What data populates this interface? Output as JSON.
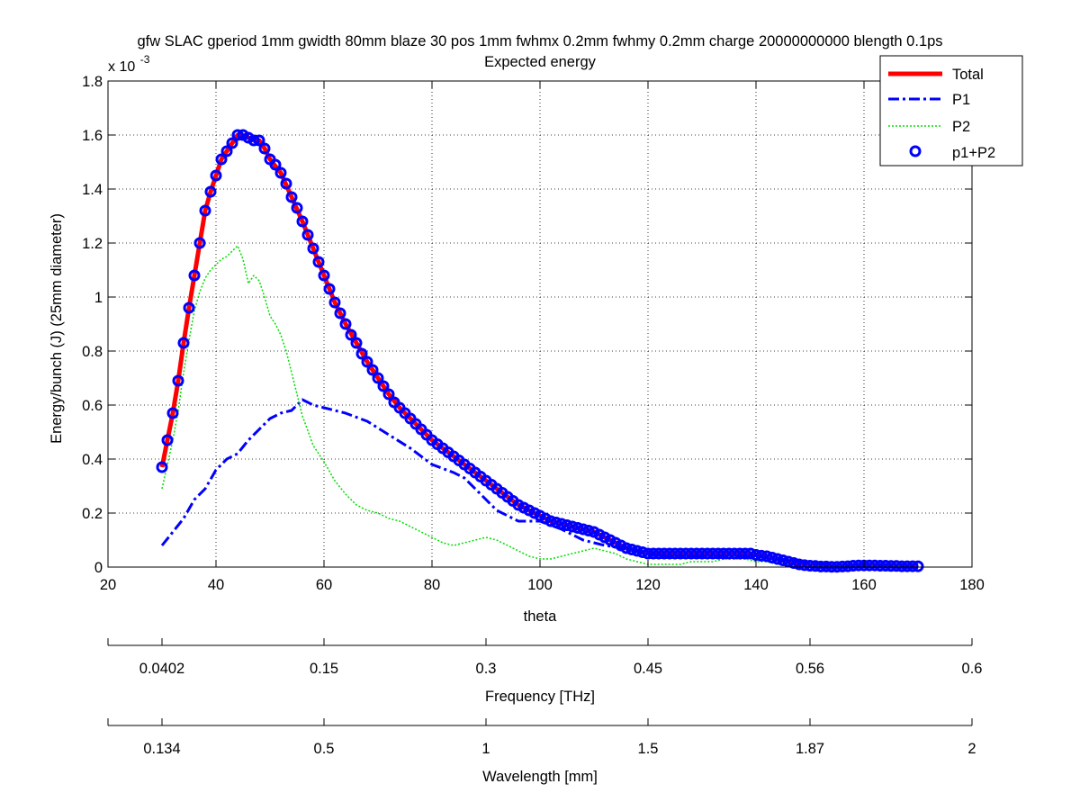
{
  "chart_data": {
    "type": "line",
    "title": "gfw SLAC gperiod 1mm gwidth 80mm blaze 30 pos 1mm fwhmx 0.2mm fwhmy 0.2mm charge 20000000000 blength 0.1ps",
    "subtitle": "Expected energy",
    "xlabel": "theta",
    "ylabel": "Energy/bunch (J)  (25mm diameter)",
    "y_exponent_label": "x 10",
    "y_exponent": "-3",
    "xlim": [
      20,
      180
    ],
    "ylim": [
      0,
      1.8
    ],
    "y_scale_factor": 0.001,
    "grid": true,
    "legend_position": "top-right",
    "xticks": [
      "20",
      "40",
      "60",
      "80",
      "100",
      "120",
      "140",
      "160",
      "180"
    ],
    "yticks": [
      "0",
      "0.2",
      "0.4",
      "0.6",
      "0.8",
      "1",
      "1.2",
      "1.4",
      "1.6",
      "1.8"
    ],
    "secondary_axes": [
      {
        "label": "Frequency [THz]",
        "ticks": [
          {
            "theta": 20,
            "label": ""
          },
          {
            "theta": 30,
            "label": "0.0402"
          },
          {
            "theta": 60,
            "label": "0.15"
          },
          {
            "theta": 90,
            "label": "0.3"
          },
          {
            "theta": 120,
            "label": "0.45"
          },
          {
            "theta": 150,
            "label": "0.56"
          },
          {
            "theta": 180,
            "label": "0.6"
          }
        ]
      },
      {
        "label": "Wavelength [mm]",
        "ticks": [
          {
            "theta": 20,
            "label": ""
          },
          {
            "theta": 30,
            "label": "0.134"
          },
          {
            "theta": 60,
            "label": "0.5"
          },
          {
            "theta": 90,
            "label": "1"
          },
          {
            "theta": 120,
            "label": "1.5"
          },
          {
            "theta": 150,
            "label": "1.87"
          },
          {
            "theta": 180,
            "label": "2"
          }
        ]
      }
    ],
    "series": [
      {
        "name": "Total",
        "color": "#ff0000",
        "style": "solid",
        "x": [
          30,
          31,
          32,
          33,
          34,
          35,
          36,
          37,
          38,
          39,
          40,
          41,
          42,
          43,
          44,
          45,
          46,
          47,
          48,
          49,
          50,
          52,
          54,
          56,
          58,
          60,
          62,
          64,
          66,
          68,
          70,
          72,
          74,
          76,
          78,
          80,
          82,
          84,
          86,
          88,
          90,
          92,
          94,
          96,
          98,
          100,
          102,
          104,
          106,
          108,
          110,
          112,
          114,
          116,
          118,
          120,
          122,
          124,
          126,
          128,
          130,
          132,
          134,
          136,
          138,
          140,
          142,
          144,
          146,
          148,
          150,
          152,
          154,
          156,
          158,
          160,
          162,
          164,
          166,
          168,
          170
        ],
        "y": [
          0.37,
          0.47,
          0.57,
          0.69,
          0.83,
          0.96,
          1.08,
          1.2,
          1.32,
          1.39,
          1.45,
          1.51,
          1.54,
          1.57,
          1.6,
          1.6,
          1.59,
          1.58,
          1.58,
          1.55,
          1.51,
          1.46,
          1.37,
          1.28,
          1.18,
          1.08,
          0.98,
          0.9,
          0.83,
          0.76,
          0.7,
          0.64,
          0.59,
          0.55,
          0.51,
          0.47,
          0.44,
          0.41,
          0.38,
          0.35,
          0.32,
          0.29,
          0.26,
          0.23,
          0.21,
          0.19,
          0.17,
          0.16,
          0.15,
          0.14,
          0.13,
          0.11,
          0.09,
          0.07,
          0.06,
          0.05,
          0.05,
          0.05,
          0.05,
          0.05,
          0.05,
          0.05,
          0.05,
          0.05,
          0.05,
          0.045,
          0.04,
          0.03,
          0.02,
          0.01,
          0.005,
          0.002,
          0.001,
          0.002,
          0.005,
          0.006,
          0.006,
          0.005,
          0.004,
          0.003,
          0.003
        ]
      },
      {
        "name": "P1",
        "color": "#0000ff",
        "style": "dashdot",
        "x": [
          30,
          32,
          34,
          36,
          38,
          40,
          42,
          44,
          46,
          48,
          50,
          52,
          54,
          56,
          58,
          60,
          64,
          68,
          72,
          76,
          80,
          84,
          86,
          88,
          90,
          92,
          94,
          96,
          98,
          100,
          104,
          108,
          112,
          116,
          120,
          124,
          128,
          132,
          136,
          140,
          144,
          148,
          152,
          156,
          160,
          164,
          168,
          170
        ],
        "y": [
          0.08,
          0.13,
          0.18,
          0.25,
          0.29,
          0.36,
          0.4,
          0.42,
          0.47,
          0.51,
          0.55,
          0.57,
          0.58,
          0.62,
          0.6,
          0.59,
          0.57,
          0.54,
          0.49,
          0.44,
          0.38,
          0.35,
          0.33,
          0.29,
          0.25,
          0.21,
          0.19,
          0.17,
          0.17,
          0.17,
          0.14,
          0.1,
          0.08,
          0.07,
          0.05,
          0.04,
          0.04,
          0.04,
          0.04,
          0.04,
          0.03,
          0.02,
          0.01,
          0.005,
          0.005,
          0.004,
          0.003,
          0.003
        ]
      },
      {
        "name": "P2",
        "color": "#00dd00",
        "style": "dotted",
        "x": [
          30,
          31,
          32,
          33,
          34,
          35,
          36,
          37,
          38,
          39,
          40,
          41,
          42,
          43,
          44,
          45,
          46,
          47,
          48,
          49,
          50,
          51,
          52,
          53,
          54,
          55,
          56,
          58,
          60,
          62,
          64,
          66,
          68,
          70,
          72,
          74,
          76,
          78,
          80,
          82,
          84,
          86,
          88,
          90,
          92,
          94,
          96,
          98,
          100,
          102,
          104,
          106,
          108,
          110,
          112,
          114,
          116,
          118,
          120,
          122,
          124,
          126,
          128,
          130,
          132,
          134,
          136,
          138,
          140,
          142,
          144,
          146,
          148,
          150,
          155,
          160,
          165,
          170
        ],
        "y": [
          0.29,
          0.38,
          0.47,
          0.58,
          0.72,
          0.84,
          0.95,
          1.02,
          1.07,
          1.1,
          1.12,
          1.14,
          1.15,
          1.17,
          1.19,
          1.14,
          1.05,
          1.08,
          1.06,
          1.0,
          0.93,
          0.9,
          0.86,
          0.8,
          0.72,
          0.64,
          0.56,
          0.45,
          0.39,
          0.32,
          0.27,
          0.23,
          0.21,
          0.2,
          0.18,
          0.17,
          0.15,
          0.13,
          0.11,
          0.09,
          0.08,
          0.09,
          0.1,
          0.11,
          0.1,
          0.08,
          0.06,
          0.04,
          0.03,
          0.03,
          0.04,
          0.05,
          0.06,
          0.07,
          0.06,
          0.05,
          0.03,
          0.02,
          0.01,
          0.01,
          0.01,
          0.01,
          0.02,
          0.02,
          0.02,
          0.03,
          0.03,
          0.03,
          0.02,
          0.02,
          0.01,
          0.01,
          0.005,
          0.003,
          0.002,
          0.002,
          0.002,
          0.002
        ]
      },
      {
        "name": "p1+P2",
        "color": "#0000ff",
        "style": "circle-markers",
        "x": [
          30,
          31,
          32,
          33,
          34,
          35,
          36,
          37,
          38,
          39,
          40,
          41,
          42,
          43,
          44,
          45,
          46,
          47,
          48,
          49,
          50,
          51,
          52,
          53,
          54,
          55,
          56,
          57,
          58,
          59,
          60,
          61,
          62,
          63,
          64,
          65,
          66,
          67,
          68,
          69,
          70,
          71,
          72,
          73,
          74,
          75,
          76,
          77,
          78,
          79,
          80,
          81,
          82,
          83,
          84,
          85,
          86,
          87,
          88,
          89,
          90,
          91,
          92,
          93,
          94,
          95,
          96,
          97,
          98,
          99,
          100,
          101,
          102,
          103,
          104,
          105,
          106,
          107,
          108,
          109,
          110,
          111,
          112,
          113,
          114,
          115,
          116,
          117,
          118,
          119,
          120,
          121,
          122,
          123,
          124,
          125,
          126,
          127,
          128,
          129,
          130,
          131,
          132,
          133,
          134,
          135,
          136,
          137,
          138,
          139,
          140,
          141,
          142,
          143,
          144,
          145,
          146,
          147,
          148,
          149,
          150,
          151,
          152,
          153,
          154,
          155,
          156,
          157,
          158,
          159,
          160,
          161,
          162,
          163,
          164,
          165,
          166,
          167,
          168,
          169,
          170
        ],
        "y": [
          0.37,
          0.47,
          0.57,
          0.69,
          0.83,
          0.96,
          1.08,
          1.2,
          1.32,
          1.39,
          1.45,
          1.51,
          1.54,
          1.57,
          1.6,
          1.6,
          1.59,
          1.58,
          1.58,
          1.55,
          1.51,
          1.49,
          1.46,
          1.42,
          1.37,
          1.33,
          1.28,
          1.23,
          1.18,
          1.13,
          1.08,
          1.03,
          0.98,
          0.94,
          0.9,
          0.86,
          0.83,
          0.79,
          0.76,
          0.73,
          0.7,
          0.67,
          0.64,
          0.61,
          0.59,
          0.57,
          0.55,
          0.53,
          0.51,
          0.49,
          0.47,
          0.455,
          0.44,
          0.425,
          0.41,
          0.395,
          0.38,
          0.365,
          0.35,
          0.335,
          0.32,
          0.305,
          0.29,
          0.275,
          0.26,
          0.245,
          0.23,
          0.22,
          0.21,
          0.2,
          0.19,
          0.18,
          0.17,
          0.165,
          0.16,
          0.155,
          0.15,
          0.145,
          0.14,
          0.135,
          0.13,
          0.12,
          0.11,
          0.1,
          0.09,
          0.08,
          0.07,
          0.065,
          0.06,
          0.055,
          0.05,
          0.05,
          0.05,
          0.05,
          0.05,
          0.05,
          0.05,
          0.05,
          0.05,
          0.05,
          0.05,
          0.05,
          0.05,
          0.05,
          0.05,
          0.05,
          0.05,
          0.05,
          0.05,
          0.05,
          0.045,
          0.042,
          0.04,
          0.035,
          0.03,
          0.025,
          0.02,
          0.015,
          0.01,
          0.007,
          0.005,
          0.004,
          0.002,
          0.002,
          0.001,
          0.001,
          0.002,
          0.003,
          0.005,
          0.006,
          0.006,
          0.006,
          0.006,
          0.005,
          0.005,
          0.004,
          0.004,
          0.003,
          0.003,
          0.003,
          0.003
        ]
      }
    ]
  }
}
